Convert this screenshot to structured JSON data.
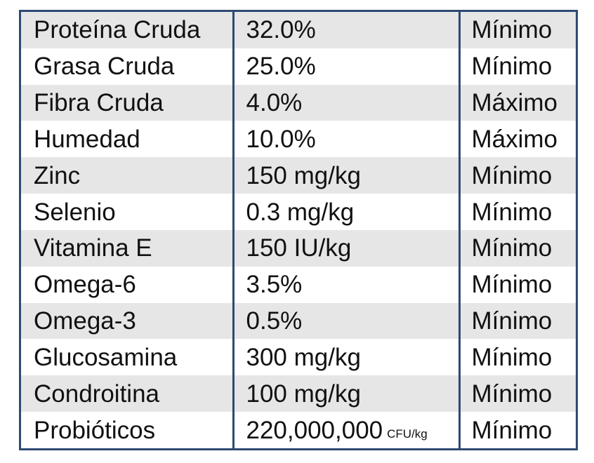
{
  "nutrient_table": {
    "rows": [
      {
        "nutrient": "Proteína Cruda",
        "value": "32.0%",
        "unit": "",
        "limit": "Mínimo"
      },
      {
        "nutrient": "Grasa Cruda",
        "value": "25.0%",
        "unit": "",
        "limit": "Mínimo"
      },
      {
        "nutrient": "Fibra Cruda",
        "value": "4.0%",
        "unit": "",
        "limit": "Máximo"
      },
      {
        "nutrient": "Humedad",
        "value": "10.0%",
        "unit": "",
        "limit": "Máximo"
      },
      {
        "nutrient": "Zinc",
        "value": "150 mg/kg",
        "unit": "",
        "limit": "Mínimo"
      },
      {
        "nutrient": "Selenio",
        "value": "0.3 mg/kg",
        "unit": "",
        "limit": "Mínimo"
      },
      {
        "nutrient": "Vitamina E",
        "value": "150 IU/kg",
        "unit": "",
        "limit": "Mínimo"
      },
      {
        "nutrient": "Omega-6",
        "value": "3.5%",
        "unit": "",
        "limit": "Mínimo"
      },
      {
        "nutrient": "Omega-3",
        "value": "0.5%",
        "unit": "",
        "limit": "Mínimo"
      },
      {
        "nutrient": "Glucosamina",
        "value": "300 mg/kg",
        "unit": "",
        "limit": "Mínimo"
      },
      {
        "nutrient": "Condroitina",
        "value": "100 mg/kg",
        "unit": "",
        "limit": "Mínimo"
      },
      {
        "nutrient": "Probióticos",
        "value": "220,000,000",
        "unit": "CFU/kg",
        "limit": "Mínimo"
      }
    ]
  },
  "colors": {
    "border": "#2d4a73",
    "stripe": "#e6e6e6",
    "background": "#ffffff"
  }
}
